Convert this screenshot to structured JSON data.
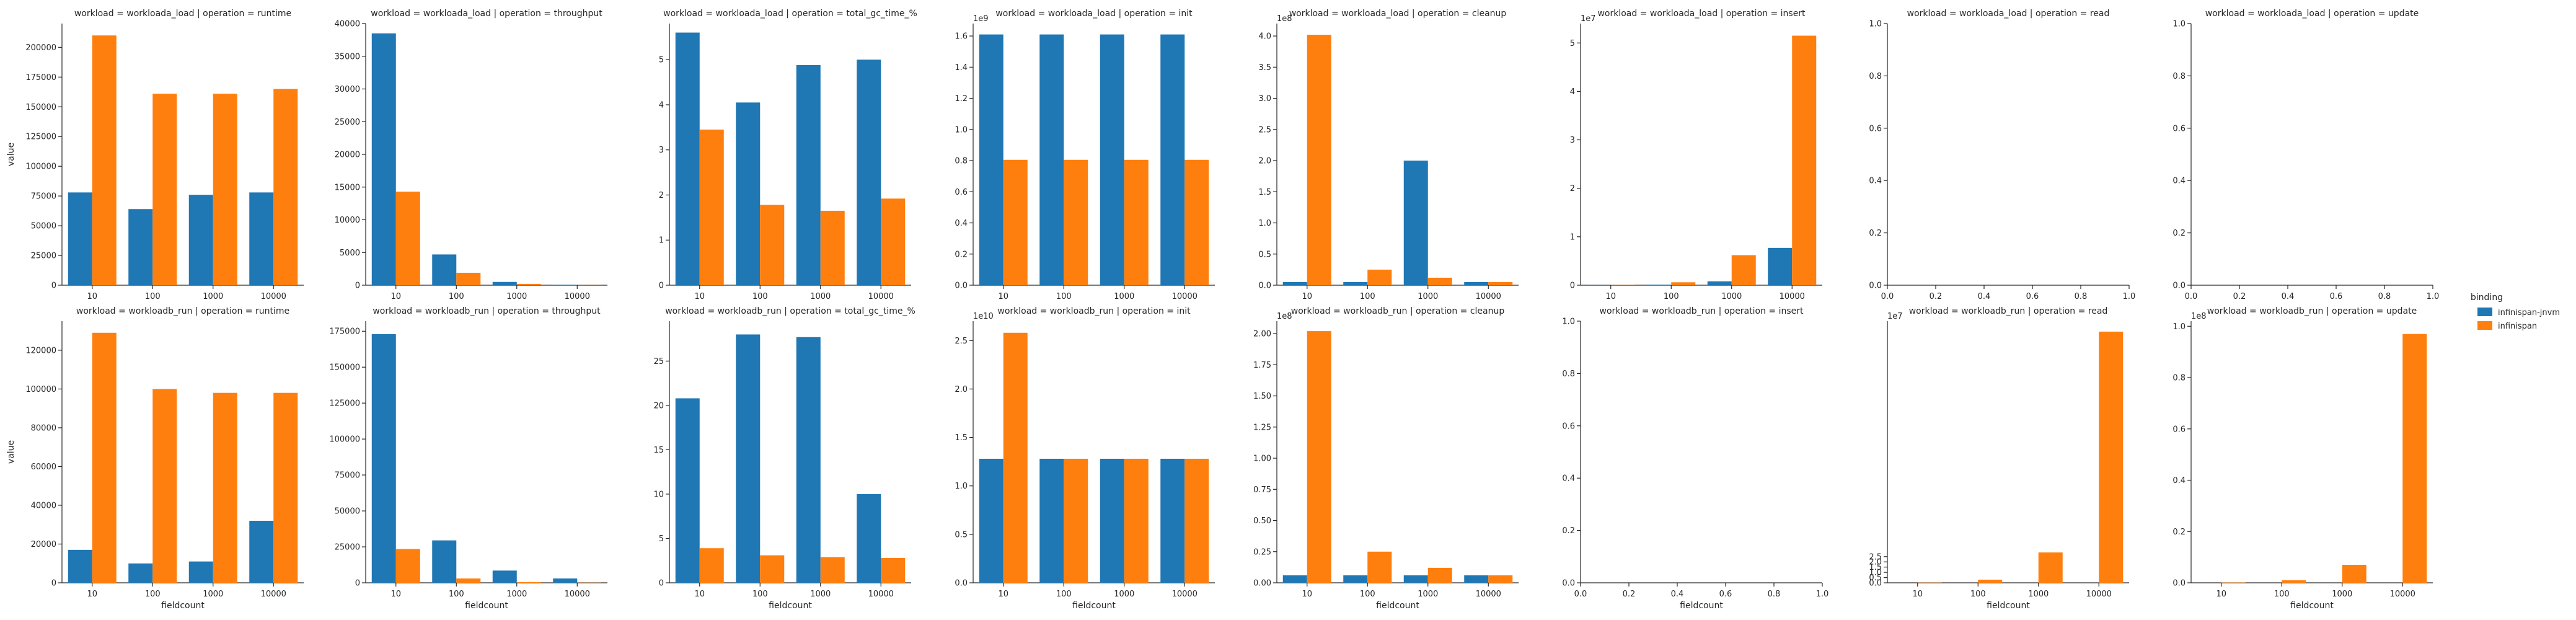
{
  "legend": {
    "title": "binding",
    "items": [
      {
        "name": "infinispan-jnvm",
        "color": "#1f77b4"
      },
      {
        "name": "infinispan",
        "color": "#ff7f0e"
      }
    ]
  },
  "chart_data": [
    {
      "type": "bar",
      "title": "workload = workloada_load | operation = runtime",
      "categories": [
        "10",
        "100",
        "1000",
        "10000"
      ],
      "series": [
        {
          "name": "infinispan-jnvm",
          "values": [
            78000,
            64000,
            76000,
            78000
          ]
        },
        {
          "name": "infinispan",
          "values": [
            210000,
            161000,
            161000,
            165000
          ]
        }
      ],
      "ylim": [
        0,
        220000
      ],
      "yticks": [
        "0",
        "25000",
        "50000",
        "75000",
        "100000",
        "125000",
        "150000",
        "175000",
        "200000"
      ],
      "offset": "",
      "xlabel": "",
      "ylabel": "value"
    },
    {
      "type": "bar",
      "title": "workload = workloada_load | operation = throughput",
      "categories": [
        "10",
        "100",
        "1000",
        "10000"
      ],
      "series": [
        {
          "name": "infinispan-jnvm",
          "values": [
            38500,
            4700,
            500,
            60
          ]
        },
        {
          "name": "infinispan",
          "values": [
            14300,
            1900,
            200,
            20
          ]
        }
      ],
      "ylim": [
        0,
        40000
      ],
      "yticks": [
        "0",
        "5000",
        "10000",
        "15000",
        "20000",
        "25000",
        "30000",
        "35000",
        "40000"
      ],
      "offset": "",
      "xlabel": "",
      "ylabel": ""
    },
    {
      "type": "bar",
      "title": "workload = workloada_load | operation = total_gc_time_%",
      "categories": [
        "10",
        "100",
        "1000",
        "10000"
      ],
      "series": [
        {
          "name": "infinispan-jnvm",
          "values": [
            5.6,
            4.05,
            4.88,
            5.0
          ]
        },
        {
          "name": "infinispan",
          "values": [
            3.45,
            1.78,
            1.65,
            1.92
          ]
        }
      ],
      "ylim": [
        0,
        5.8
      ],
      "yticks": [
        "0",
        "1",
        "2",
        "3",
        "4",
        "5"
      ],
      "offset": "",
      "xlabel": "",
      "ylabel": ""
    },
    {
      "type": "bar",
      "title": "workload = workloada_load | operation = init",
      "categories": [
        "10",
        "100",
        "1000",
        "10000"
      ],
      "series": [
        {
          "name": "infinispan-jnvm",
          "values": [
            1.61,
            1.61,
            1.61,
            1.61
          ]
        },
        {
          "name": "infinispan",
          "values": [
            0.805,
            0.805,
            0.805,
            0.805
          ]
        }
      ],
      "ylim": [
        0,
        1.68
      ],
      "yticks": [
        "0.0",
        "0.2",
        "0.4",
        "0.6",
        "0.8",
        "1.0",
        "1.2",
        "1.4",
        "1.6"
      ],
      "offset": "1e9",
      "xlabel": "",
      "ylabel": ""
    },
    {
      "type": "bar",
      "title": "workload = workloada_load | operation = cleanup",
      "categories": [
        "10",
        "100",
        "1000",
        "10000"
      ],
      "series": [
        {
          "name": "infinispan-jnvm",
          "values": [
            0.05,
            0.05,
            2.0,
            0.05
          ]
        },
        {
          "name": "infinispan",
          "values": [
            4.02,
            0.25,
            0.12,
            0.05
          ]
        }
      ],
      "ylim": [
        0,
        4.2
      ],
      "yticks": [
        "0.0",
        "0.5",
        "1.0",
        "1.5",
        "2.0",
        "2.5",
        "3.0",
        "3.5",
        "4.0"
      ],
      "offset": "1e8",
      "xlabel": "",
      "ylabel": ""
    },
    {
      "type": "bar",
      "title": "workload = workloada_load | operation = insert",
      "categories": [
        "10",
        "100",
        "1000",
        "10000"
      ],
      "series": [
        {
          "name": "infinispan-jnvm",
          "values": [
            0.002,
            0.01,
            0.08,
            0.77
          ]
        },
        {
          "name": "infinispan",
          "values": [
            0.005,
            0.06,
            0.62,
            5.15
          ]
        }
      ],
      "ylim": [
        0,
        5.4
      ],
      "yticks": [
        "0",
        "1",
        "2",
        "3",
        "4",
        "5"
      ],
      "offset": "1e7",
      "xlabel": "",
      "ylabel": ""
    },
    {
      "type": "empty",
      "title": "workload = workloada_load | operation = read",
      "xticks": [
        "0.0",
        "0.2",
        "0.4",
        "0.6",
        "0.8",
        "1.0"
      ],
      "yticks": [
        "0.0",
        "0.2",
        "0.4",
        "0.6",
        "0.8",
        "1.0"
      ],
      "xlabel": "",
      "ylabel": ""
    },
    {
      "type": "empty",
      "title": "workload = workloada_load | operation = update",
      "xticks": [
        "0.0",
        "0.2",
        "0.4",
        "0.6",
        "0.8",
        "1.0"
      ],
      "yticks": [
        "0.0",
        "0.2",
        "0.4",
        "0.6",
        "0.8",
        "1.0"
      ],
      "xlabel": "",
      "ylabel": ""
    },
    {
      "type": "bar",
      "title": "workload = workloadb_run | operation = runtime",
      "categories": [
        "10",
        "100",
        "1000",
        "10000"
      ],
      "series": [
        {
          "name": "infinispan-jnvm",
          "values": [
            17000,
            10000,
            11000,
            32000
          ]
        },
        {
          "name": "infinispan",
          "values": [
            129000,
            100000,
            98000,
            98000
          ]
        }
      ],
      "ylim": [
        0,
        135000
      ],
      "yticks": [
        "0",
        "20000",
        "40000",
        "60000",
        "80000",
        "100000",
        "120000"
      ],
      "offset": "",
      "xlabel": "fieldcount",
      "ylabel": "value"
    },
    {
      "type": "bar",
      "title": "workload = workloadb_run | operation = throughput",
      "categories": [
        "10",
        "100",
        "1000",
        "10000"
      ],
      "series": [
        {
          "name": "infinispan-jnvm",
          "values": [
            173000,
            29500,
            8500,
            3000
          ]
        },
        {
          "name": "infinispan",
          "values": [
            23500,
            3000,
            500,
            100
          ]
        }
      ],
      "ylim": [
        0,
        182000
      ],
      "yticks": [
        "0",
        "25000",
        "50000",
        "75000",
        "100000",
        "125000",
        "150000",
        "175000"
      ],
      "offset": "",
      "xlabel": "fieldcount",
      "ylabel": ""
    },
    {
      "type": "bar",
      "title": "workload = workloadb_run | operation = total_gc_time_%",
      "categories": [
        "10",
        "100",
        "1000",
        "10000"
      ],
      "series": [
        {
          "name": "infinispan-jnvm",
          "values": [
            20.8,
            28.0,
            27.7,
            10.0
          ]
        },
        {
          "name": "infinispan",
          "values": [
            3.9,
            3.1,
            2.9,
            2.8
          ]
        }
      ],
      "ylim": [
        0,
        29.5
      ],
      "yticks": [
        "0",
        "5",
        "10",
        "15",
        "20",
        "25"
      ],
      "offset": "",
      "xlabel": "fieldcount",
      "ylabel": ""
    },
    {
      "type": "bar",
      "title": "workload = workloadb_run | operation = init",
      "categories": [
        "10",
        "100",
        "1000",
        "10000"
      ],
      "series": [
        {
          "name": "infinispan-jnvm",
          "values": [
            1.28,
            1.28,
            1.28,
            1.28
          ]
        },
        {
          "name": "infinispan",
          "values": [
            2.58,
            1.28,
            1.28,
            1.28
          ]
        }
      ],
      "ylim": [
        0,
        2.7
      ],
      "yticks": [
        "0.0",
        "0.5",
        "1.0",
        "1.5",
        "2.0",
        "2.5"
      ],
      "offset": "1e10",
      "xlabel": "fieldcount",
      "ylabel": ""
    },
    {
      "type": "bar",
      "title": "workload = workloadb_run | operation = cleanup",
      "categories": [
        "10",
        "100",
        "1000",
        "10000"
      ],
      "series": [
        {
          "name": "infinispan-jnvm",
          "values": [
            0.06,
            0.06,
            0.06,
            0.06
          ]
        },
        {
          "name": "infinispan",
          "values": [
            2.02,
            0.25,
            0.12,
            0.06
          ]
        }
      ],
      "ylim": [
        0,
        2.1
      ],
      "yticks": [
        "0.00",
        "0.25",
        "0.50",
        "0.75",
        "1.00",
        "1.25",
        "1.50",
        "1.75",
        "2.00"
      ],
      "offset": "1e8",
      "xlabel": "fieldcount",
      "ylabel": ""
    },
    {
      "type": "empty",
      "title": "workload = workloadb_run | operation = insert",
      "xticks": [
        "0.0",
        "0.2",
        "0.4",
        "0.6",
        "0.8",
        "1.0"
      ],
      "yticks": [
        "0.0",
        "0.2",
        "0.4",
        "0.6",
        "0.8",
        "1.0"
      ],
      "xlabel": "fieldcount",
      "ylabel": ""
    },
    {
      "type": "bar",
      "title": "workload = workloadb_run | operation = read",
      "categories": [
        "10",
        "100",
        "1000",
        "10000"
      ],
      "series": [
        {
          "name": "infinispan-jnvm",
          "values": [
            0,
            0,
            0,
            0
          ]
        },
        {
          "name": "infinispan",
          "values": [
            0.02,
            0.3,
            2.9,
            24.0
          ]
        }
      ],
      "ylim": [
        0,
        25
      ],
      "yticks": [
        "0.0",
        "0.5",
        "1.0",
        "1.5",
        "2.0",
        "2.5"
      ],
      "offset": "1e7",
      "xlabel": "fieldcount",
      "ylabel": ""
    },
    {
      "type": "bar",
      "title": "workload = workloadb_run | operation = update",
      "categories": [
        "10",
        "100",
        "1000",
        "10000"
      ],
      "series": [
        {
          "name": "infinispan-jnvm",
          "values": [
            0,
            0,
            0,
            0
          ]
        },
        {
          "name": "infinispan",
          "values": [
            0.001,
            0.01,
            0.07,
            0.97
          ]
        }
      ],
      "ylim": [
        0,
        1.02
      ],
      "yticks": [
        "0.0",
        "0.2",
        "0.4",
        "0.6",
        "0.8",
        "1.0"
      ],
      "offset": "1e8",
      "xlabel": "fieldcount",
      "ylabel": ""
    }
  ]
}
